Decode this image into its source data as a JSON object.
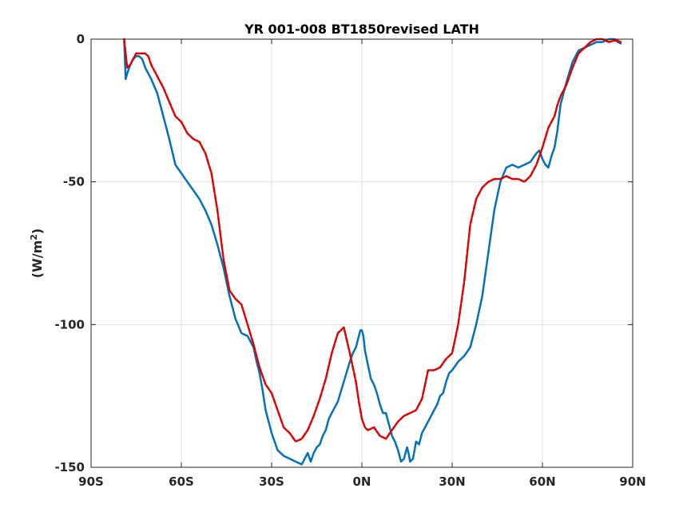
{
  "chart_data": {
    "type": "line",
    "title": "YR 001-008 BT1850revised LATH",
    "ylabel_main": "(W/m",
    "ylabel_sup": "2",
    "ylabel_close": ")",
    "xlim": [
      -90,
      90
    ],
    "ylim": [
      -150,
      0
    ],
    "grid": true,
    "x_ticks": [
      {
        "value": -90,
        "label": "90S"
      },
      {
        "value": -60,
        "label": "60S"
      },
      {
        "value": -30,
        "label": "30S"
      },
      {
        "value": 0,
        "label": "0N"
      },
      {
        "value": 30,
        "label": "30N"
      },
      {
        "value": 60,
        "label": "60N"
      },
      {
        "value": 90,
        "label": "90N"
      }
    ],
    "y_ticks": [
      {
        "value": 0,
        "label": "0"
      },
      {
        "value": -50,
        "label": "-50"
      },
      {
        "value": -100,
        "label": "-100"
      },
      {
        "value": -150,
        "label": "-150"
      }
    ],
    "series": [
      {
        "color": "#0072BD",
        "style": "solid",
        "x": [
          -79,
          -78.5,
          -78,
          -77,
          -76,
          -75,
          -74,
          -73,
          -72,
          -70,
          -68,
          -66,
          -64,
          -62,
          -60,
          -58,
          -56,
          -54,
          -52,
          -50,
          -48,
          -46,
          -44,
          -42,
          -40,
          -38,
          -36,
          -35,
          -34,
          -33,
          -32,
          -30,
          -28,
          -26,
          -24,
          -22,
          -20,
          -19,
          -18,
          -17,
          -16,
          -15,
          -14,
          -13,
          -12,
          -11,
          -10,
          -8,
          -6,
          -4,
          -3,
          -2,
          -1,
          -0.5,
          0,
          0.5,
          1,
          2,
          3,
          4,
          5,
          6,
          7,
          8,
          9,
          10,
          11,
          12,
          13,
          14,
          15,
          15.5,
          16,
          17,
          18,
          19,
          20,
          22,
          24,
          25,
          26,
          27,
          28,
          29,
          30,
          32,
          34,
          36,
          38,
          40,
          42,
          44,
          46,
          48,
          50,
          52,
          54,
          56,
          58,
          59,
          60,
          61,
          62,
          63,
          64,
          65,
          66,
          68,
          70,
          72,
          74,
          76,
          78,
          80,
          82,
          84,
          85,
          86
        ],
        "y": [
          0,
          -14,
          -12,
          -9,
          -7,
          -6,
          -6,
          -7,
          -10,
          -14,
          -19,
          -27,
          -35,
          -44,
          -47,
          -50,
          -53,
          -56,
          -60,
          -65,
          -72,
          -80,
          -90,
          -98,
          -103,
          -104,
          -108,
          -113,
          -117,
          -123,
          -130,
          -138,
          -144,
          -146,
          -147,
          -148,
          -149,
          -147,
          -145,
          -148,
          -145,
          -143,
          -142,
          -139,
          -137,
          -133,
          -131,
          -127,
          -120,
          -113,
          -110,
          -108,
          -104,
          -102,
          -102,
          -104,
          -109,
          -114,
          -119,
          -121,
          -124,
          -128,
          -131,
          -131,
          -135,
          -139,
          -141,
          -144,
          -148,
          -147,
          -143,
          -145,
          -148,
          -147,
          -141,
          -142,
          -138,
          -134,
          -130,
          -128,
          -125,
          -124,
          -120,
          -117,
          -116,
          -113,
          -111,
          -108,
          -100,
          -90,
          -75,
          -60,
          -50,
          -45,
          -44,
          -45,
          -44,
          -43,
          -40,
          -39,
          -42,
          -44,
          -45,
          -41,
          -38,
          -32,
          -23,
          -15,
          -8,
          -4,
          -3,
          -2,
          -1,
          -1,
          0,
          0,
          -1,
          -1.5
        ]
      },
      {
        "color": "#E00000",
        "style": "dashed",
        "x": [
          -79,
          -78,
          -77,
          -76,
          -75,
          -74,
          -73,
          -72,
          -71,
          -70,
          -68,
          -66,
          -64,
          -62,
          -60,
          -58,
          -56,
          -54,
          -52,
          -50,
          -48,
          -46,
          -44,
          -42,
          -40,
          -38,
          -36,
          -34,
          -32,
          -30,
          -28,
          -26,
          -24,
          -22,
          -20,
          -18,
          -16,
          -14,
          -12,
          -10,
          -8,
          -6,
          -4,
          -2,
          -1,
          0,
          1,
          2,
          4,
          6,
          8,
          10,
          12,
          14,
          16,
          18,
          20,
          22,
          24,
          26,
          28,
          30,
          32,
          34,
          36,
          38,
          40,
          42,
          44,
          46,
          48,
          50,
          52,
          54,
          56,
          58,
          60,
          62,
          64,
          65,
          66,
          68,
          70,
          72,
          74,
          76,
          78,
          80,
          82,
          84,
          85,
          86
        ],
        "y": [
          0,
          -10,
          -9,
          -7,
          -5,
          -5,
          -5,
          -5,
          -6,
          -9,
          -13,
          -17,
          -22,
          -27,
          -29,
          -33,
          -35,
          -36,
          -40,
          -47,
          -60,
          -77,
          -88,
          -91,
          -93,
          -100,
          -107,
          -115,
          -121,
          -124,
          -130,
          -136,
          -138,
          -141,
          -140,
          -137,
          -132,
          -126,
          -119,
          -110,
          -103,
          -101,
          -110,
          -120,
          -127,
          -133,
          -136,
          -137,
          -136,
          -139,
          -140,
          -137,
          -134,
          -132,
          -131,
          -130,
          -126,
          -116,
          -116,
          -115,
          -112,
          -110,
          -100,
          -85,
          -65,
          -56,
          -52,
          -50,
          -49,
          -49,
          -48,
          -49,
          -49,
          -50,
          -48,
          -44,
          -38,
          -31,
          -27,
          -23,
          -20,
          -16,
          -10,
          -5,
          -3,
          -1,
          0,
          0,
          -1,
          -0.5,
          -0.5,
          -1
        ]
      }
    ]
  }
}
